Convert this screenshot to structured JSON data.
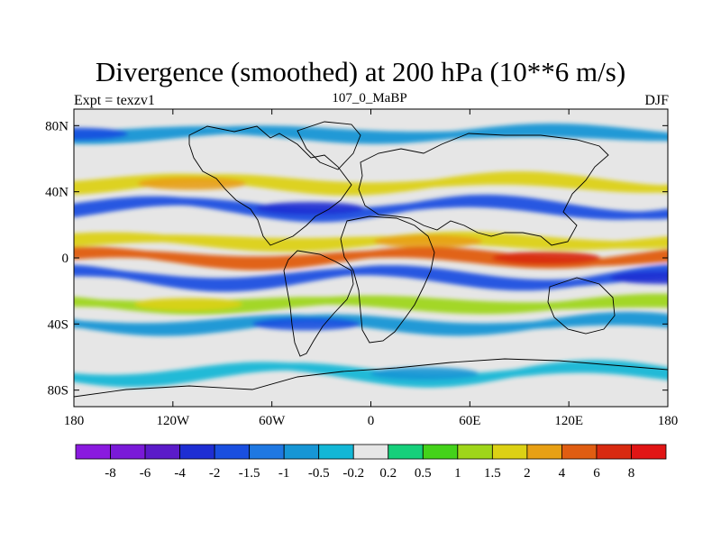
{
  "title": "Divergence (smoothed) at 200 hPa (10**6 m/s)",
  "left_label": "Expt = texzv1",
  "center_label": "107_0_MaBP",
  "right_label": "DJF",
  "chart_data": {
    "type": "heatmap",
    "variable": "Divergence (smoothed)",
    "level": "200 hPa",
    "units": "10**6 m/s",
    "x_axis": {
      "ticks": [
        "180",
        "120W",
        "60W",
        "0",
        "60E",
        "120E",
        "180"
      ],
      "range_lon": [
        -180,
        180
      ]
    },
    "y_axis": {
      "ticks": [
        "80N",
        "40N",
        "0",
        "40S",
        "80S"
      ],
      "range_lat": [
        -90,
        90
      ]
    },
    "colorbar": {
      "levels": [
        "-8",
        "-6",
        "-4",
        "-2",
        "-1.5",
        "-1",
        "-0.5",
        "-0.2",
        "0.2",
        "0.5",
        "1",
        "1.5",
        "2",
        "4",
        "6",
        "8"
      ],
      "colors": [
        "#8a1adf",
        "#7a1ad8",
        "#5b1bc9",
        "#1e2ed3",
        "#1a4fe0",
        "#1f78e2",
        "#1796d5",
        "#13b7d6",
        "#e6e6e6",
        "#16d07b",
        "#44d21a",
        "#9fd61a",
        "#dcd114",
        "#e8a014",
        "#e05d12",
        "#d82a10",
        "#e11515"
      ]
    },
    "bands": [
      {
        "lat": 75,
        "label": "high latitude NH",
        "sign": "negative",
        "value": -1
      },
      {
        "lat": 45,
        "label": "NH midlatitude",
        "sign": "positive",
        "value": 1.5
      },
      {
        "lat": 30,
        "label": "subtropical NH",
        "sign": "negative",
        "value": -2
      },
      {
        "lat": 10,
        "label": "tropical NH",
        "sign": "positive",
        "value": 1.5
      },
      {
        "lat": 0,
        "label": "equatorial",
        "sign": "positive",
        "value": 4
      },
      {
        "lat": -12,
        "label": "tropical SH",
        "sign": "negative",
        "value": -2
      },
      {
        "lat": -28,
        "label": "subtropical SH",
        "sign": "positive",
        "value": 1
      },
      {
        "lat": -40,
        "label": "SH midlatitude",
        "sign": "negative",
        "value": -1
      },
      {
        "lat": -70,
        "label": "high latitude SH",
        "sign": "negative",
        "value": -0.5
      }
    ]
  }
}
